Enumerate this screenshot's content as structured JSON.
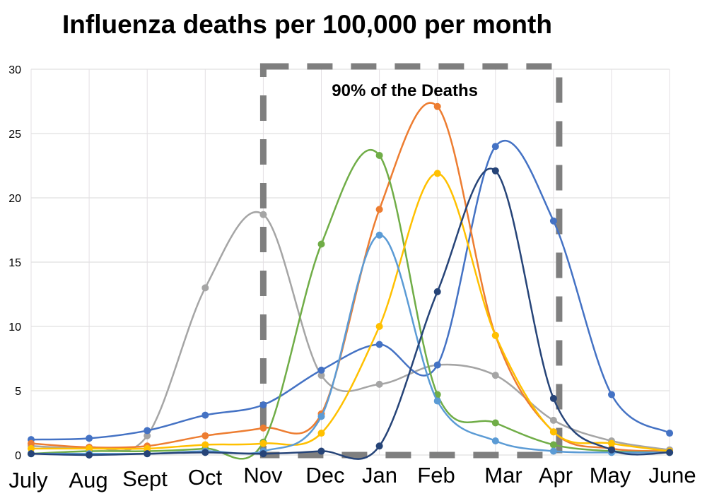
{
  "chart_data": {
    "type": "line",
    "title": "Influenza deaths per 100,000 per month",
    "xlabel": "",
    "ylabel": "",
    "categories": [
      "July",
      "Aug",
      "Sept",
      "Oct",
      "Nov",
      "Dec",
      "Jan",
      "Feb",
      "Mar",
      "Apr",
      "May",
      "June"
    ],
    "ylim": [
      0,
      30
    ],
    "yticks": [
      "0",
      "5",
      "10",
      "15",
      "20",
      "25",
      "30"
    ],
    "grid": true,
    "annotation": {
      "text": "90% of the Deaths",
      "from": "Nov",
      "to": "Apr",
      "color": "#7f7f7f"
    },
    "series": [
      {
        "name": "gray",
        "color": "#a5a5a5",
        "values": [
          0.7,
          0.6,
          1.5,
          13,
          18.7,
          6.2,
          5.5,
          7,
          6.2,
          2.7,
          1.1,
          0.4
        ]
      },
      {
        "name": "blue",
        "color": "#4472c4",
        "values": [
          1.2,
          1.3,
          1.9,
          3.1,
          3.9,
          6.6,
          8.6,
          7,
          24,
          18.2,
          4.7,
          1.7
        ]
      },
      {
        "name": "orange",
        "color": "#ed7d31",
        "values": [
          0.9,
          0.6,
          0.7,
          1.5,
          2.1,
          3.2,
          19.1,
          27.1,
          9.3,
          1.8,
          0.5,
          0.3
        ]
      },
      {
        "name": "green",
        "color": "#70ad47",
        "values": [
          0.1,
          0.3,
          0.3,
          0.5,
          1.0,
          16.4,
          23.3,
          4.7,
          2.5,
          0.8,
          0.3,
          0.2
        ]
      },
      {
        "name": "yellow",
        "color": "#ffc000",
        "values": [
          0.5,
          0.5,
          0.5,
          0.8,
          0.9,
          1.7,
          10,
          21.9,
          9.3,
          1.8,
          0.9,
          0.3
        ]
      },
      {
        "name": "light-blue",
        "color": "#5b9bd5",
        "values": [
          0.1,
          0.1,
          0.1,
          0.3,
          0.3,
          3.0,
          17.1,
          4.2,
          1.1,
          0.3,
          0.2,
          0.2
        ]
      },
      {
        "name": "navy",
        "color": "#264478",
        "values": [
          0.1,
          0,
          0.1,
          0.2,
          0.1,
          0.3,
          0.7,
          12.7,
          22.1,
          4.4,
          0.4,
          0.2
        ]
      }
    ]
  }
}
